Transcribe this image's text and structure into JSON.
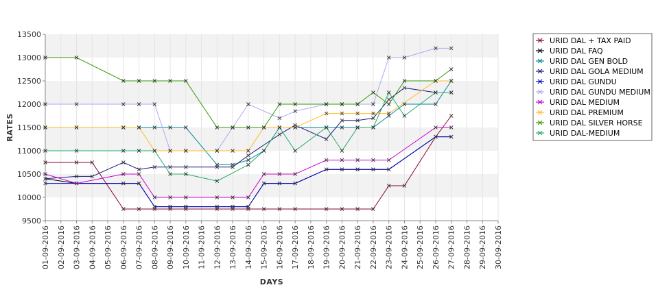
{
  "chart_data": {
    "type": "line",
    "xlabel": "DAYS",
    "ylabel": "RATES",
    "ylim": [
      9500,
      13500
    ],
    "y_ticks": [
      9500,
      10000,
      10500,
      11000,
      11500,
      12000,
      12500,
      13000,
      13500
    ],
    "grid": "alternating horizontal bands",
    "legend_position": "right",
    "categories": [
      "01-09-2016",
      "02-09-2016",
      "03-09-2016",
      "04-09-2016",
      "05-09-2016",
      "06-09-2016",
      "07-09-2016",
      "08-09-2016",
      "09-09-2016",
      "10-09-2016",
      "11-09-2016",
      "12-09-2016",
      "13-09-2016",
      "14-09-2016",
      "15-09-2016",
      "16-09-2016",
      "17-09-2016",
      "18-09-2016",
      "19-09-2016",
      "20-09-2016",
      "21-09-2016",
      "22-09-2016",
      "23-09-2016",
      "24-09-2016",
      "25-09-2016",
      "26-09-2016",
      "27-09-2016",
      "28-09-2016",
      "29-09-2016",
      "30-09-2016"
    ],
    "series": [
      {
        "name": "URID DAL + TAX PAID",
        "color": "#880033",
        "values": [
          10750,
          null,
          10750,
          10750,
          null,
          9750,
          9750,
          9750,
          9750,
          9750,
          null,
          9750,
          9750,
          9750,
          9750,
          9750,
          9750,
          null,
          9750,
          9750,
          9750,
          9750,
          10250,
          10250,
          null,
          11300,
          11750,
          null,
          null,
          null
        ]
      },
      {
        "name": "URID DAL FAQ",
        "color": "#000000",
        "values": [
          10400,
          null,
          10300,
          null,
          null,
          10300,
          10300,
          9800,
          9800,
          9800,
          null,
          9800,
          9800,
          9800,
          10300,
          10300,
          10300,
          null,
          10600,
          10600,
          10600,
          10600,
          10600,
          null,
          null,
          11300,
          11300,
          null,
          null,
          null
        ]
      },
      {
        "name": "URID DAL GEN BOLD",
        "color": "#008899",
        "values": [
          11500,
          null,
          11500,
          null,
          null,
          11500,
          11500,
          11500,
          11500,
          11500,
          null,
          10700,
          10700,
          10800,
          11000,
          11500,
          11500,
          null,
          11500,
          11500,
          11500,
          11500,
          11750,
          12000,
          null,
          12000,
          12500,
          null,
          null,
          null
        ]
      },
      {
        "name": "URID DAL GOLA MEDIUM",
        "color": "#1a1a80",
        "values": [
          10400,
          null,
          10450,
          10450,
          null,
          10750,
          10600,
          10650,
          10650,
          10650,
          null,
          10650,
          10650,
          10900,
          null,
          11350,
          11550,
          null,
          11250,
          11650,
          11650,
          11700,
          12100,
          12350,
          null,
          12250,
          12250,
          null,
          null,
          null
        ]
      },
      {
        "name": "URID DAL GUNDU",
        "color": "#0000cc",
        "values": [
          10300,
          null,
          10300,
          null,
          null,
          10300,
          10300,
          9800,
          9800,
          9800,
          null,
          9800,
          9800,
          9800,
          10300,
          10300,
          10300,
          null,
          10600,
          10600,
          10600,
          10600,
          10600,
          null,
          null,
          11300,
          11300,
          null,
          null,
          null
        ]
      },
      {
        "name": "URID DAL GUNDU MEDIUM",
        "color": "#aaaaee",
        "values": [
          12000,
          null,
          12000,
          null,
          null,
          12000,
          12000,
          12000,
          11000,
          11000,
          null,
          11000,
          11500,
          12000,
          null,
          11700,
          11850,
          null,
          12000,
          12000,
          12000,
          12000,
          13000,
          13000,
          null,
          13200,
          13200,
          null,
          null,
          null
        ]
      },
      {
        "name": "URID DAL MEDIUM",
        "color": "#cc00cc",
        "values": [
          10500,
          null,
          10300,
          null,
          null,
          10500,
          10500,
          10000,
          10000,
          10000,
          null,
          10000,
          10000,
          10000,
          10500,
          10500,
          10500,
          null,
          10800,
          10800,
          10800,
          10800,
          10800,
          null,
          null,
          11500,
          11500,
          null,
          null,
          null
        ]
      },
      {
        "name": "URID DAL PREMIUM",
        "color": "#ffbb22",
        "values": [
          11500,
          null,
          11500,
          null,
          null,
          11500,
          11500,
          11000,
          11000,
          11000,
          null,
          11000,
          11000,
          11000,
          11500,
          11500,
          11500,
          null,
          11800,
          11800,
          11800,
          11800,
          11800,
          null,
          null,
          12500,
          12500,
          null,
          null,
          null
        ]
      },
      {
        "name": "URID DAL SILVER HORSE",
        "color": "#339900",
        "values": [
          13000,
          null,
          13000,
          null,
          null,
          12500,
          12500,
          12500,
          12500,
          12500,
          null,
          11500,
          11500,
          11500,
          11500,
          12000,
          12000,
          null,
          12000,
          12000,
          12000,
          12250,
          12000,
          12500,
          null,
          12500,
          12750,
          null,
          null,
          null
        ]
      },
      {
        "name": "URID DAL-MEDIUM",
        "color": "#22aa66",
        "values": [
          11000,
          null,
          11000,
          null,
          null,
          11000,
          11000,
          11000,
          10500,
          10500,
          null,
          10350,
          null,
          10700,
          11000,
          11500,
          11000,
          null,
          11500,
          11000,
          11500,
          11500,
          12250,
          11750,
          null,
          12250,
          12250,
          null,
          null,
          null
        ]
      }
    ]
  }
}
